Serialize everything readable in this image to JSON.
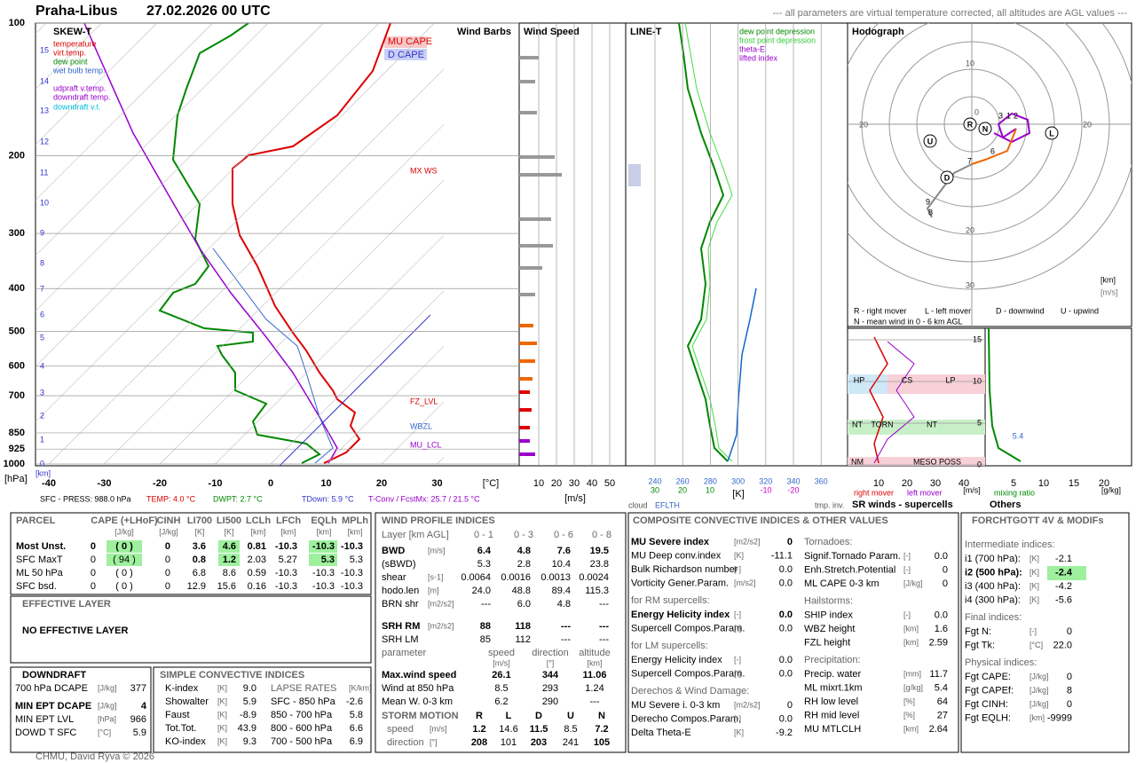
{
  "header": {
    "station": "Praha-Libus",
    "time": "27.02.2026 00 UTC",
    "note": "--- all parameters are virtual temperature corrected, all altitudes are AGL values ---"
  },
  "skewt": {
    "title": "SKEW-T",
    "legend": [
      "temperature",
      "virt.temp.",
      "dew point",
      "wet bulb temp.",
      "udpraft v.temp.",
      "downdraft temp.",
      "downdraft v.t."
    ],
    "cape_labels": [
      "MU CAPE",
      "D CAPE"
    ],
    "pressure_levels": [
      100,
      200,
      300,
      400,
      500,
      600,
      700,
      850,
      925,
      1000
    ],
    "pressure_unit": "[hPa]",
    "km_levels": [
      15,
      14,
      13,
      12,
      11,
      10,
      9,
      8,
      7,
      6,
      5,
      4,
      3,
      2,
      1,
      0
    ],
    "km_unit": "[km]",
    "temp_ticks": [
      -40,
      -30,
      -20,
      -10,
      0,
      10,
      20,
      30
    ],
    "temp_unit": "[°C]",
    "markers": [
      "MX WS",
      "FZ_LVL",
      "WBZL",
      "MU_LCL"
    ],
    "footer": [
      "SFC - PRESS: 988.0 hPa",
      "TEMP: 4.0 °C",
      "DWPT: 2.7 °C",
      "TDown: 5.9 °C",
      "T-Conv / FcstMx: 25.7 / 21.5 °C"
    ]
  },
  "wind_barbs": {
    "title": "Wind Barbs"
  },
  "wind_speed": {
    "title": "Wind Speed",
    "ticks": [
      10,
      20,
      30,
      40,
      50
    ],
    "unit": "[m/s]"
  },
  "line_t": {
    "title": "LINE-T",
    "legend": [
      "dew point depression",
      "frost point depression",
      "theta-E",
      "lifted index"
    ],
    "theta_ticks": [
      240,
      260,
      280,
      300,
      320,
      340,
      360
    ],
    "depression_ticks": [
      30,
      20,
      10
    ],
    "li_ticks": [
      -10,
      -20
    ],
    "unit": "[K]",
    "bottom": [
      "cloud",
      "EFLTH",
      "tmp. inv."
    ]
  },
  "hodograph": {
    "title": "Hodograph",
    "ticks": [
      0,
      10,
      20,
      30
    ],
    "points": [
      "R",
      "N",
      "L",
      "U",
      "D"
    ],
    "heights": [
      3,
      1,
      2,
      6,
      7,
      9,
      8
    ],
    "units": [
      "[km]",
      "[m/s]"
    ],
    "legend": [
      "R - right mover",
      "L - left mover",
      "D - downwind",
      "U - upwind",
      "N - mean wind in 0 - 6 km AGL"
    ]
  },
  "sr_winds": {
    "title": "SR winds - supercells",
    "yticks": [
      15,
      10,
      5,
      0
    ],
    "xticks": [
      10,
      20,
      30,
      40
    ],
    "unit": "[m/s]",
    "zones": [
      "HP",
      "CS",
      "LP",
      "NT",
      "TORN",
      "NT",
      "NM",
      "MESO POSS"
    ],
    "legend": [
      "right mover",
      "left mover"
    ]
  },
  "others": {
    "title": "Others",
    "value": 5.4,
    "xticks": [
      5,
      10,
      15,
      20
    ],
    "unit": "[g/kg]",
    "label": "mixing ratio"
  },
  "parcel": {
    "header": [
      "PARCEL",
      "CAPE (+LHoF)",
      "CINH",
      "LI700",
      "LI500",
      "LCLh",
      "LFCh",
      "EQLh",
      "MPLh"
    ],
    "units": [
      "[J/kg]",
      "[J/kg]",
      "[K]",
      "[K]",
      "[km]",
      "[km]",
      "[km]",
      "[km]"
    ],
    "rows": [
      [
        "Most Unst.",
        "0",
        "( 0 )",
        "0",
        "3.6",
        "4.6",
        "0.81",
        "-10.3",
        "-10.3",
        "-10.3"
      ],
      [
        "SFC MaxT",
        "0",
        "( 94 )",
        "0",
        "0.8",
        "1.2",
        "2.03",
        "5.27",
        "5.3",
        "5.3"
      ],
      [
        "ML 50 hPa",
        "0",
        "( 0 )",
        "0",
        "6.8",
        "8.6",
        "0.59",
        "-10.3",
        "-10.3",
        "-10.3"
      ],
      [
        "SFC bsd.",
        "0",
        "( 0 )",
        "0",
        "12.9",
        "15.6",
        "0.16",
        "-10.3",
        "-10.3",
        "-10.3"
      ]
    ]
  },
  "effective": {
    "title": "EFFECTIVE LAYER",
    "text": "NO EFFECTIVE LAYER"
  },
  "downdraft": {
    "title": "DOWNDRAFT",
    "rows": [
      {
        "label": "700 hPa DCAPE",
        "unit": "[J/kg]",
        "value": "377"
      },
      {
        "label": "MIN EPT DCAPE",
        "unit": "[J/kg]",
        "value": "4",
        "bold": true
      },
      {
        "label": "MIN EPT LVL",
        "unit": "[hPa]",
        "value": "966"
      },
      {
        "label": "DOWD T SFC",
        "unit": "[°C]",
        "value": "5.9"
      }
    ]
  },
  "simple": {
    "title": "SIMPLE CONVECTIVE INDICES",
    "rows": [
      {
        "label": "K-index",
        "unit": "[K]",
        "value": "9.0"
      },
      {
        "label": "Showalter",
        "unit": "[K]",
        "value": "5.9"
      },
      {
        "label": "Faust",
        "unit": "[K]",
        "value": "-8.9"
      },
      {
        "label": "Tot.Tot.",
        "unit": "[K]",
        "value": "43.9"
      },
      {
        "label": "KO-index",
        "unit": "[K]",
        "value": "9.3"
      }
    ],
    "lapse_title": "LAPSE RATES",
    "lapse_unit": "[K/km]",
    "lapse": [
      {
        "label": "SFC - 850 hPa",
        "value": "-2.6"
      },
      {
        "label": "850 - 700 hPa",
        "value": "5.8"
      },
      {
        "label": "800 - 600 hPa",
        "value": "6.6"
      },
      {
        "label": "700 - 500 hPa",
        "value": "6.9"
      }
    ]
  },
  "wind_profile": {
    "title": "WIND PROFILE INDICES",
    "header": [
      "Layer [km AGL]",
      "0 - 1",
      "0 - 3",
      "0 - 6",
      "0 - 8"
    ],
    "rows": [
      {
        "label": "BWD",
        "unit": "[m/s]",
        "values": [
          "6.4",
          "4.8",
          "7.6",
          "19.5"
        ],
        "bold": true
      },
      {
        "label": "(sBWD)",
        "values": [
          "5.3",
          "2.8",
          "10.4",
          "23.8"
        ]
      },
      {
        "label": "shear",
        "unit": "[s-1]",
        "values": [
          "0.0064",
          "0.0016",
          "0.0013",
          "0.0024"
        ]
      },
      {
        "label": "hodo.len",
        "unit": "[m]",
        "values": [
          "24.0",
          "48.8",
          "89.4",
          "115.3"
        ]
      },
      {
        "label": "BRN shr",
        "unit": "[m2/s2]",
        "values": [
          "---",
          "6.0",
          "4.8",
          "---"
        ]
      }
    ],
    "srh": [
      {
        "label": "SRH RM",
        "unit": "[m2/s2]",
        "values": [
          "88",
          "118",
          "---",
          "---"
        ],
        "bold": true
      },
      {
        "label": "SRH LM",
        "values": [
          "85",
          "112",
          "---",
          "---"
        ]
      }
    ],
    "param_header": [
      "parameter",
      "speed",
      "direction",
      "altitude"
    ],
    "param_units": [
      "[m/s]",
      "[°]",
      "[km]"
    ],
    "params": [
      {
        "label": "Max.wind speed",
        "values": [
          "26.1",
          "344",
          "11.06"
        ],
        "bold": true
      },
      {
        "label": "Wind at 850 hPa",
        "values": [
          "8.5",
          "293",
          "1.24"
        ]
      },
      {
        "label": "Mean W. 0-3 km",
        "values": [
          "6.2",
          "290",
          "---"
        ]
      }
    ],
    "storm_header": [
      "STORM MOTION",
      "R",
      "L",
      "D",
      "U",
      "N"
    ],
    "storm": [
      {
        "label": "speed",
        "unit": "[m/s]",
        "values": [
          "1.2",
          "14.6",
          "11.5",
          "8.5",
          "7.2"
        ]
      },
      {
        "label": "direction",
        "unit": "[°]",
        "values": [
          "208",
          "101",
          "203",
          "241",
          "105"
        ]
      }
    ]
  },
  "composite": {
    "title": "COMPOSITE CONVECTIVE INDICES & OTHER VALUES",
    "left": [
      {
        "label": "MU Severe index",
        "unit": "[m2/s2]",
        "value": "0",
        "bold": true
      },
      {
        "label": "MU Deep conv.index",
        "unit": "[K]",
        "value": "-11.1"
      },
      {
        "label": "Bulk Richardson number",
        "unit": "[-]",
        "value": "0.0"
      },
      {
        "label": "Vorticity Gener.Param.",
        "unit": "[m/s2]",
        "value": "0.0"
      },
      {
        "heading": "for RM supercells:"
      },
      {
        "label": "Energy Helicity index",
        "unit": "[-]",
        "value": "0.0",
        "bold": true
      },
      {
        "label": "Supercell Compos.Param.",
        "unit": "[-]",
        "value": "0.0"
      },
      {
        "heading": "for LM supercells:"
      },
      {
        "label": "Energy Helicity index",
        "unit": "[-]",
        "value": "0.0"
      },
      {
        "label": "Supercell Compos.Param.",
        "unit": "[-]",
        "value": "0.0"
      },
      {
        "heading": "Derechos & Wind Damage:"
      },
      {
        "label": "MU Severe i. 0-3 km",
        "unit": "[m2/s2]",
        "value": "0"
      },
      {
        "label": "Derecho Compos.Param.",
        "unit": "[-]",
        "value": "0.0"
      },
      {
        "label": "Delta Theta-E",
        "unit": "[K]",
        "value": "-9.2"
      }
    ],
    "right": [
      {
        "heading": "Tornadoes:"
      },
      {
        "label": "Signif.Tornado Param.",
        "unit": "[-]",
        "value": "0.0"
      },
      {
        "label": "Enh.Stretch.Potential",
        "unit": "[-]",
        "value": "0"
      },
      {
        "label": "ML CAPE 0-3 km",
        "unit": "[J/kg]",
        "value": "0"
      },
      {
        "heading": "Hailstorms:"
      },
      {
        "label": "SHIP index",
        "unit": "[-]",
        "value": "0.0"
      },
      {
        "label": "WBZ height",
        "unit": "[km]",
        "value": "1.6"
      },
      {
        "label": "FZL height",
        "unit": "[km]",
        "value": "2.59"
      },
      {
        "heading": "Precipitation:"
      },
      {
        "label": "Precip. water",
        "unit": "[mm]",
        "value": "11.7"
      },
      {
        "label": "ML mixrt.1km",
        "unit": "[g/kg]",
        "value": "5.4"
      },
      {
        "label": "RH low level",
        "unit": "[%]",
        "value": "64"
      },
      {
        "label": "RH mid level",
        "unit": "[%]",
        "value": "27"
      },
      {
        "label": "MU MTLCLH",
        "unit": "[km]",
        "value": "2.64"
      }
    ]
  },
  "forchtgott": {
    "title": "FORCHTGOTT 4V & MODIFs",
    "items": [
      {
        "heading": "Intermediate indices:"
      },
      {
        "label": "i1 (700 hPa):",
        "unit": "[K]",
        "value": "-2.1"
      },
      {
        "label": "i2 (500 hPa):",
        "unit": "[K]",
        "value": "-2.4",
        "bold": true
      },
      {
        "label": "i3 (400 hPa):",
        "unit": "[K]",
        "value": "-4.2"
      },
      {
        "label": "i4 (300 hPa):",
        "unit": "[K]",
        "value": "-5.6"
      },
      {
        "heading": "Final indices:"
      },
      {
        "label": "Fgt N:",
        "unit": "[-]",
        "value": "0"
      },
      {
        "label": "Fgt Tk:",
        "unit": "[°C]",
        "value": "22.0"
      },
      {
        "heading": "Physical indices:"
      },
      {
        "label": "Fgt CAPE:",
        "unit": "[J/kg]",
        "value": "0"
      },
      {
        "label": "Fgt CAPEf:",
        "unit": "[J/kg]",
        "value": "8"
      },
      {
        "label": "Fgt CINH:",
        "unit": "[J/kg]",
        "value": "0"
      },
      {
        "label": "Fgt EQLH:",
        "unit": "[km]",
        "value": "-9999"
      }
    ]
  },
  "footer": "CHMU, David Rýva © 2026"
}
